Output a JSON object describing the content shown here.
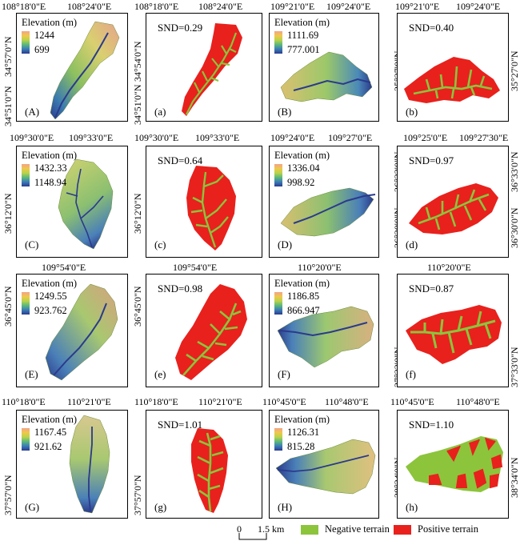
{
  "colors": {
    "negative_terrain": "#8cc43c",
    "positive_terrain": "#e8211d",
    "elev_high": "#f0a085",
    "elev_low": "#2b3a8c"
  },
  "rows": [
    {
      "top_coords": [
        "108°18'0\"E",
        "108°24'0\"E",
        "108°18'0\"E",
        "108°24'0\"E",
        "109°21'0\"E",
        "109°24'0\"E",
        "109°21'0\"E",
        "109°24'0\"E"
      ],
      "panels": [
        {
          "label": "(A)",
          "elevation_title": "Elevation (m)",
          "elev_max": "1244",
          "elev_min": "699",
          "left_coords": [
            "34°57'0\"N",
            "34°51'0\"N"
          ]
        },
        {
          "label": "(a)",
          "snd": "SND=0.29",
          "left_coords": [
            "34°54'0\"N",
            "34°51'0\"N"
          ]
        },
        {
          "label": "(B)",
          "elevation_title": "Elevation (m)",
          "elev_max": "1111.69",
          "elev_min": "777.001"
        },
        {
          "label": "(b)",
          "snd": "SND=0.40",
          "left_coords": [
            "35°27'0\"N"
          ],
          "right_coords": [
            "35°27'0\"N"
          ]
        }
      ]
    },
    {
      "top_coords": [
        "109°30'0\"E",
        "109°33'0\"E",
        "109°30'0\"E",
        "109°33'0\"E",
        "109°24'0\"E",
        "109°27'0\"E",
        "109°25'0\"E",
        "109°27'30\"E"
      ],
      "panels": [
        {
          "label": "(C)",
          "elevation_title": "Elevation (m)",
          "elev_max": "1432.33",
          "elev_min": "1148.94",
          "left_coords": [
            "36°12'0\"N"
          ]
        },
        {
          "label": "(c)",
          "snd": "SND=0.64",
          "left_coords": [
            "36°12'0\"N"
          ]
        },
        {
          "label": "(D)",
          "elevation_title": "Elevation (m)",
          "elev_max": "1336.04",
          "elev_min": "998.92"
        },
        {
          "label": "(d)",
          "snd": "SND=0.97",
          "left_coords": [
            "36°33'0\"N",
            "36°30'0\"N"
          ],
          "right_coords": [
            "36°33'0\"N",
            "36°30'0\"N"
          ]
        }
      ]
    },
    {
      "top_coords": [
        "109°54'0\"E",
        "109°54'0\"E",
        "110°20'0\"E",
        "110°20'0\"E"
      ],
      "panels": [
        {
          "label": "(E)",
          "elevation_title": "Elevation (m)",
          "elev_max": "1249.55",
          "elev_min": "923.762",
          "left_coords": [
            "36°45'0\"N"
          ]
        },
        {
          "label": "(e)",
          "snd": "SND=0.98",
          "left_coords": [
            "36°45'0\"N"
          ]
        },
        {
          "label": "(F)",
          "elevation_title": "Elevation (m)",
          "elev_max": "1186.85",
          "elev_min": "866.947"
        },
        {
          "label": "(f)",
          "snd": "SND=0.87",
          "left_coords": [
            "37°33'0\"N"
          ],
          "right_coords": [
            "37°33'0\"N"
          ]
        }
      ]
    },
    {
      "top_coords": [
        "110°18'0\"E",
        "110°21'0\"E",
        "110°18'0\"E",
        "110°21'0\"E",
        "110°45'0\"E",
        "110°48'0\"E",
        "110°45'0\"E",
        "110°48'0\"E"
      ],
      "panels": [
        {
          "label": "(G)",
          "elevation_title": "Elevation (m)",
          "elev_max": "1167.45",
          "elev_min": "921.62",
          "left_coords": [
            "37°57'0\"N"
          ]
        },
        {
          "label": "(g)",
          "snd": "SND=1.01",
          "left_coords": [
            "37°57'0\"N"
          ]
        },
        {
          "label": "(H)",
          "elevation_title": "Elevation (m)",
          "elev_max": "1126.31",
          "elev_min": "815.28"
        },
        {
          "label": "(h)",
          "snd": "SND=1.10",
          "left_coords": [
            "38°34'0\"N"
          ],
          "right_coords": [
            "38°34'0\"N"
          ]
        }
      ]
    }
  ],
  "scale_bar": {
    "zero": "0",
    "distance": "1.5 km"
  },
  "legend": {
    "negative": "Negative terrain",
    "positive": "Positive terrain"
  }
}
